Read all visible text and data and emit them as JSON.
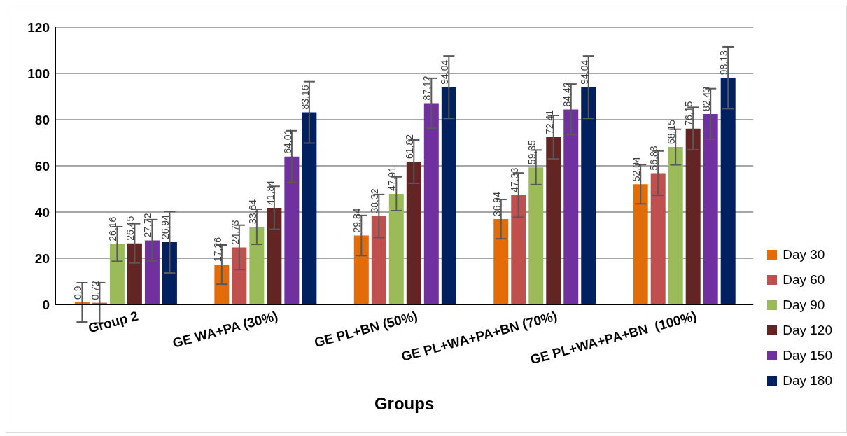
{
  "chart_data": {
    "type": "bar",
    "xlabel": "Groups",
    "categories": [
      "Group 2",
      "GE WA+PA (30%)",
      "GE PL+BN (50%)",
      "GE PL+WA+PA+BN (70%)",
      "GE PL+WA+PA+BN  (100%)"
    ],
    "series": [
      {
        "name": "Day 30",
        "color": "#e36c09",
        "values": [
          0.9,
          17.26,
          29.84,
          36.94,
          52.04
        ],
        "errors": [
          8.5,
          8.5,
          8.7,
          8.5,
          8.5
        ],
        "value_labels": [
          "0,9",
          "17,26",
          "29,84",
          "36,94",
          "52,04"
        ]
      },
      {
        "name": "Day 60",
        "color": "#c0504d",
        "values": [
          0.72,
          24.73,
          38.32,
          47.33,
          56.83
        ],
        "errors": [
          8.7,
          9.6,
          9.3,
          9.6,
          9.6
        ],
        "value_labels": [
          "0,72",
          "24,73",
          "38,32",
          "47,33",
          "56,83"
        ]
      },
      {
        "name": "Day 90",
        "color": "#9bbb59",
        "values": [
          26.16,
          33.64,
          47.91,
          59.35,
          68.15
        ],
        "errors": [
          7.5,
          7.6,
          7.3,
          7.5,
          7.7
        ],
        "value_labels": [
          "26,16",
          "33,64",
          "47,91",
          "59,35",
          "68,15"
        ]
      },
      {
        "name": "Day 120",
        "color": "#632523",
        "values": [
          26.45,
          41.84,
          61.82,
          72.41,
          76.15
        ],
        "errors": [
          8.5,
          9.3,
          9.4,
          9.4,
          9.2
        ],
        "value_labels": [
          "26,45",
          "41,84",
          "61,82",
          "72,41",
          "76,15"
        ]
      },
      {
        "name": "Day 150",
        "color": "#7030a0",
        "values": [
          27.72,
          64.01,
          87.12,
          84.42,
          82.43
        ],
        "errors": [
          9,
          11.2,
          10.8,
          11,
          11
        ],
        "value_labels": [
          "27,72",
          "64,01",
          "87,12",
          "84,42",
          "82,43"
        ]
      },
      {
        "name": "Day 180",
        "color": "#002060",
        "values": [
          26.94,
          83.16,
          94.04,
          94.04,
          98.13
        ],
        "errors": [
          13.3,
          13.3,
          13.5,
          13.5,
          13.4
        ],
        "value_labels": [
          "26,94",
          "83,16",
          "94,04",
          "94,04",
          "98,13"
        ]
      }
    ],
    "ylim": [
      0,
      120
    ],
    "yticks": [
      0,
      20,
      40,
      60,
      80,
      100,
      120
    ],
    "grid": "y",
    "legend": "right"
  }
}
